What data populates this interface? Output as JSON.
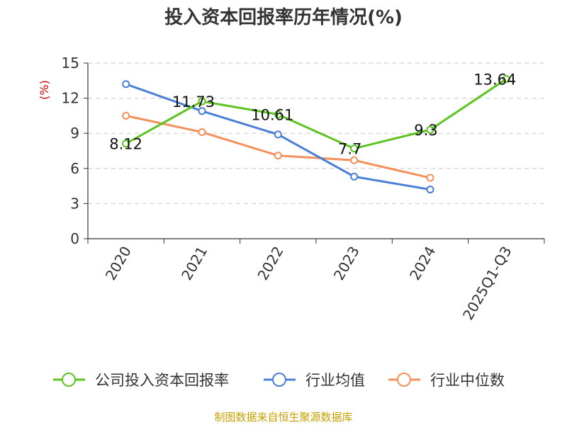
{
  "chart_data": {
    "type": "line",
    "title": "投入资本回报率历年情况(%)",
    "ylabel": "(%)",
    "categories": [
      "2020",
      "2021",
      "2022",
      "2023",
      "2024",
      "2025Q1-Q3"
    ],
    "yticks": [
      0,
      3,
      6,
      9,
      12,
      15
    ],
    "ylim": [
      0,
      15
    ],
    "grid": "horizontal-dashed",
    "legend_position": "bottom",
    "series": [
      {
        "name": "公司投入资本回报率",
        "color": "#5cc31f",
        "values": [
          8.12,
          11.73,
          10.61,
          7.7,
          9.3,
          13.64
        ],
        "labels": [
          "8.12",
          "11.73",
          "10.61",
          "7.7",
          "9.3",
          "13.64"
        ]
      },
      {
        "name": "行业均值",
        "color": "#4a7fd9",
        "values": [
          13.2,
          10.9,
          8.9,
          5.3,
          4.2,
          null
        ]
      },
      {
        "name": "行业中位数",
        "color": "#f4905a",
        "values": [
          10.5,
          9.1,
          7.1,
          6.7,
          5.2,
          null
        ]
      }
    ]
  },
  "footer": {
    "source": "制图数据来自恒生聚源数据库"
  }
}
